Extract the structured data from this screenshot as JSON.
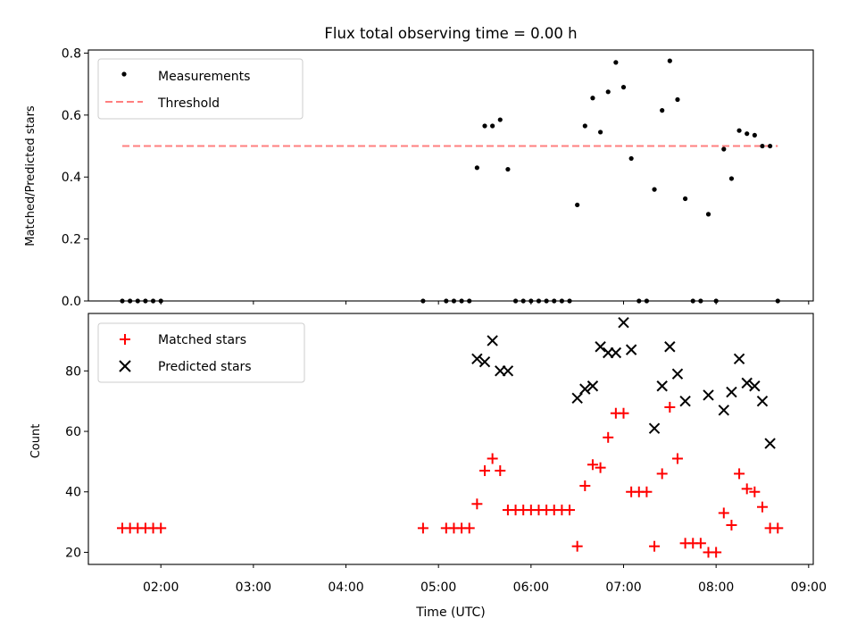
{
  "figure": {
    "title": "Flux total observing time = 0.00 h",
    "xlabel": "Time (UTC)"
  },
  "colors": {
    "measurements": "#000000",
    "threshold": "#ff7f7f",
    "matched": "#ff0000",
    "predicted": "#000000"
  },
  "chart_data": [
    {
      "type": "scatter",
      "name": "ratio",
      "ylabel": "Matched/Predicted stars",
      "xlim": [
        "01:13",
        "09:03"
      ],
      "ylim": [
        0,
        0.81
      ],
      "x_ticks": [
        "02:00",
        "03:00",
        "04:00",
        "05:00",
        "06:00",
        "07:00",
        "08:00",
        "09:00"
      ],
      "y_ticks": [
        "0.0",
        "0.2",
        "0.4",
        "0.6",
        "0.8"
      ],
      "legend_position": "upper-left",
      "grid": false,
      "series": [
        {
          "name": "Measurements",
          "marker": "dot",
          "x": [
            "01:35",
            "01:40",
            "01:45",
            "01:50",
            "01:55",
            "02:00",
            "04:50",
            "05:05",
            "05:10",
            "05:15",
            "05:20",
            "05:25",
            "05:30",
            "05:35",
            "05:40",
            "05:45",
            "05:50",
            "05:55",
            "06:00",
            "06:05",
            "06:10",
            "06:15",
            "06:20",
            "06:25",
            "06:30",
            "06:35",
            "06:40",
            "06:45",
            "06:50",
            "06:55",
            "07:00",
            "07:05",
            "07:10",
            "07:15",
            "07:20",
            "07:25",
            "07:30",
            "07:35",
            "07:40",
            "07:45",
            "07:50",
            "07:55",
            "08:00",
            "08:05",
            "08:10",
            "08:15",
            "08:20",
            "08:25",
            "08:30",
            "08:35",
            "08:40"
          ],
          "y": [
            0,
            0,
            0,
            0,
            0,
            0,
            0,
            0,
            0,
            0,
            0,
            0.43,
            0.565,
            0.565,
            0.585,
            0.425,
            0,
            0,
            0,
            0,
            0,
            0,
            0,
            0,
            0.31,
            0.565,
            0.655,
            0.545,
            0.675,
            0.77,
            0.69,
            0.46,
            0,
            0,
            0.36,
            0.615,
            0.775,
            0.65,
            0.33,
            0,
            0,
            0.28,
            0,
            0.49,
            0.395,
            0.55,
            0.54,
            0.535,
            0.5,
            0.5,
            0
          ]
        },
        {
          "name": "Threshold",
          "marker": "dashed-line",
          "x": [
            "01:35",
            "08:40"
          ],
          "y": [
            0.5,
            0.5
          ]
        }
      ]
    },
    {
      "type": "scatter",
      "name": "counts",
      "ylabel": "Count",
      "xlim": [
        "01:13",
        "09:03"
      ],
      "ylim": [
        16,
        99
      ],
      "x_ticks": [
        "02:00",
        "03:00",
        "04:00",
        "05:00",
        "06:00",
        "07:00",
        "08:00",
        "09:00"
      ],
      "y_ticks": [
        "20",
        "40",
        "60",
        "80"
      ],
      "legend_position": "upper-left",
      "grid": false,
      "series": [
        {
          "name": "Matched stars",
          "marker": "plus",
          "x": [
            "01:35",
            "01:40",
            "01:45",
            "01:50",
            "01:55",
            "02:00",
            "04:50",
            "05:05",
            "05:10",
            "05:15",
            "05:20",
            "05:25",
            "05:30",
            "05:35",
            "05:40",
            "05:45",
            "05:50",
            "05:55",
            "06:00",
            "06:05",
            "06:10",
            "06:15",
            "06:20",
            "06:25",
            "06:30",
            "06:35",
            "06:40",
            "06:45",
            "06:50",
            "06:55",
            "07:00",
            "07:05",
            "07:10",
            "07:15",
            "07:20",
            "07:25",
            "07:30",
            "07:35",
            "07:40",
            "07:45",
            "07:50",
            "07:55",
            "08:00",
            "08:05",
            "08:10",
            "08:15",
            "08:20",
            "08:25",
            "08:30",
            "08:35",
            "08:40"
          ],
          "y": [
            28,
            28,
            28,
            28,
            28,
            28,
            28,
            28,
            28,
            28,
            28,
            36,
            47,
            51,
            47,
            34,
            34,
            34,
            34,
            34,
            34,
            34,
            34,
            34,
            22,
            42,
            49,
            48,
            58,
            66,
            66,
            40,
            40,
            40,
            22,
            46,
            68,
            51,
            23,
            23,
            23,
            20,
            20,
            33,
            29,
            46,
            41,
            40,
            35,
            28,
            28
          ]
        },
        {
          "name": "Predicted stars",
          "marker": "x",
          "x": [
            "05:25",
            "05:30",
            "05:35",
            "05:40",
            "05:45",
            "06:30",
            "06:35",
            "06:40",
            "06:45",
            "06:50",
            "06:55",
            "07:00",
            "07:05",
            "07:20",
            "07:25",
            "07:30",
            "07:35",
            "07:40",
            "07:55",
            "08:05",
            "08:10",
            "08:15",
            "08:20",
            "08:25",
            "08:30",
            "08:35"
          ],
          "y": [
            84,
            83,
            90,
            80,
            80,
            71,
            74,
            75,
            88,
            86,
            86,
            96,
            87,
            61,
            75,
            88,
            79,
            70,
            72,
            67,
            73,
            84,
            76,
            75,
            70,
            56
          ]
        }
      ]
    }
  ]
}
